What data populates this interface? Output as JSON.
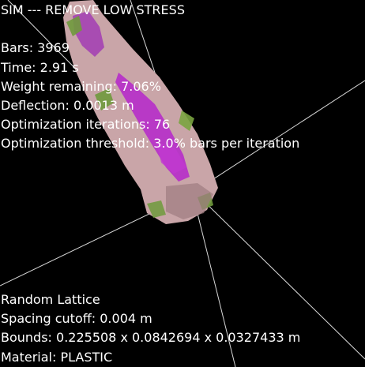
{
  "sim": {
    "title": "SIM --- REMOVE LOW STRESS",
    "bars": "Bars: 3969",
    "time": "Time: 2.91 s",
    "weight_remaining": "Weight remaining: 7.06%",
    "deflection": "Deflection: 0.0013 m",
    "optimization_iterations": "Optimization iterations: 76",
    "optimization_threshold": "Optimization threshold: 3.0% bars per iteration"
  },
  "lattice": {
    "type": "Random Lattice",
    "spacing_cutoff": "Spacing cutoff: 0.004 m",
    "bounds": "Bounds: 0.225508 x 0.0842694 x 0.0327433 m",
    "material": "Material: PLASTIC"
  },
  "colors": {
    "background": "#000000",
    "text": "#ffffff",
    "mesh_pink": "#c9a5a8",
    "mesh_magenta": "#b62ec9",
    "mesh_green": "#6f9a3c"
  }
}
